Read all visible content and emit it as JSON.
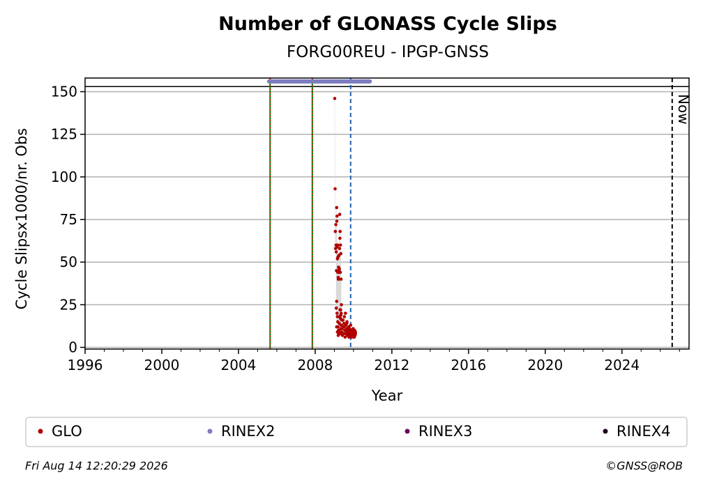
{
  "chart_data": {
    "type": "scatter",
    "title": "Number of GLONASS Cycle Slips",
    "subtitle": "FORG00REU - IPGP-GNSS",
    "xlabel": "Year",
    "ylabel": "Cycle Slipsx1000/nr. Obs",
    "xlim": [
      1996,
      2027.5
    ],
    "ylim": [
      -1,
      158
    ],
    "x_ticks": [
      1996,
      2000,
      2004,
      2008,
      2012,
      2016,
      2020,
      2024
    ],
    "y_ticks": [
      0,
      25,
      50,
      75,
      100,
      125,
      150
    ],
    "grid": "horizontal",
    "now_label": "Now",
    "now_line_x": 2026.62,
    "top_hline_y": 153,
    "vertical_lines": [
      {
        "x": 2005.65,
        "style": "green-red-dotted"
      },
      {
        "x": 2007.85,
        "style": "green-red-dotted"
      },
      {
        "x": 2009.85,
        "style": "blue-dashed"
      }
    ],
    "rinex2_span": {
      "start": 2005.6,
      "end": 2010.85,
      "y": 156
    },
    "series": [
      {
        "name": "GLO",
        "color": "#b00000",
        "x": [
          2009.02,
          2009.04,
          2009.05,
          2009.06,
          2009.08,
          2009.09,
          2009.1,
          2009.11,
          2009.12,
          2009.13,
          2009.14,
          2009.15,
          2009.16,
          2009.17,
          2009.18,
          2009.19,
          2009.2,
          2009.21,
          2009.22,
          2009.23,
          2009.24,
          2009.25,
          2009.26,
          2009.27,
          2009.28,
          2009.29,
          2009.3,
          2009.31,
          2009.32,
          2009.33,
          2009.34,
          2009.35,
          2009.36,
          2009.37,
          2009.38,
          2009.1,
          2009.12,
          2009.14,
          2009.16,
          2009.18,
          2009.2,
          2009.22,
          2009.24,
          2009.26,
          2009.28,
          2009.3,
          2009.32,
          2009.34,
          2009.36,
          2009.38,
          2009.4,
          2009.42,
          2009.44,
          2009.46,
          2009.48,
          2009.5,
          2009.52,
          2009.54,
          2009.56,
          2009.58,
          2009.6,
          2009.62,
          2009.64,
          2009.66,
          2009.68,
          2009.7,
          2009.72,
          2009.74,
          2009.76,
          2009.78,
          2009.8,
          2009.82,
          2009.84,
          2009.86,
          2009.88,
          2009.9,
          2009.92,
          2009.94,
          2009.96,
          2009.98,
          2010.0,
          2010.02,
          2010.04,
          2010.06,
          2010.08,
          2010.1,
          2009.45,
          2009.5,
          2009.55,
          2009.6,
          2009.65,
          2009.7,
          2009.75,
          2009.8,
          2009.85,
          2009.9,
          2009.95,
          2010.0,
          2010.05,
          2010.1,
          2009.12,
          2009.16,
          2009.2,
          2009.25,
          2009.3,
          2009.35
        ],
        "y": [
          146,
          93,
          68,
          58,
          72,
          60,
          56,
          45,
          82,
          74,
          77,
          59,
          52,
          60,
          44,
          53,
          41,
          40,
          47,
          44,
          54,
          45,
          46,
          58,
          78,
          64,
          68,
          44,
          60,
          22,
          55,
          40,
          20,
          25,
          16,
          23,
          27,
          20,
          18,
          15,
          12,
          10,
          8,
          14,
          18,
          22,
          17,
          19,
          13,
          9,
          11,
          7,
          16,
          12,
          8,
          14,
          18,
          10,
          6,
          20,
          13,
          9,
          11,
          15,
          7,
          10,
          8,
          12,
          6,
          9,
          11,
          7,
          8,
          10,
          6,
          9,
          8,
          10,
          7,
          11,
          9,
          8,
          6,
          10,
          7,
          9,
          16,
          12,
          10,
          8,
          14,
          9,
          11,
          7,
          13,
          8,
          10,
          6,
          9,
          8,
          12,
          9,
          7,
          10,
          8,
          11
        ]
      },
      {
        "name": "RINEX2",
        "color": "#7c7cbe",
        "x": [],
        "y": []
      },
      {
        "name": "RINEX3",
        "color": "#6a0a5a",
        "x": [],
        "y": []
      },
      {
        "name": "RINEX4",
        "color": "#200020",
        "x": [],
        "y": []
      }
    ]
  },
  "footer": {
    "timestamp": "Fri Aug 14 12:20:29 2026",
    "copyright": "©GNSS@ROB"
  }
}
